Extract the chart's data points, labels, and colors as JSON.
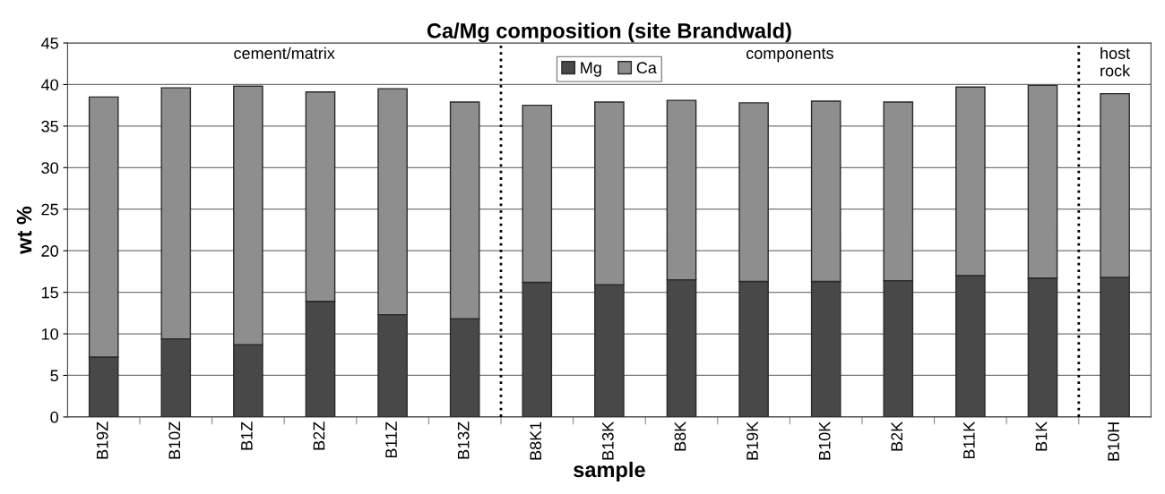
{
  "chart_data": {
    "type": "bar",
    "title": "Ca/Mg composition (site Brandwald)",
    "xlabel": "sample",
    "ylabel": "wt %",
    "categories": [
      "B19Z",
      "B10Z",
      "B1Z",
      "B2Z",
      "B11Z",
      "B13Z",
      "B8K1",
      "B13K",
      "B8K",
      "B19K",
      "B10K",
      "B2K",
      "B11K",
      "B1K",
      "B10H"
    ],
    "stacked": true,
    "series": [
      {
        "name": "Mg",
        "color": "#484848",
        "values": [
          7.2,
          9.4,
          8.7,
          13.9,
          12.3,
          11.8,
          16.2,
          15.9,
          16.5,
          16.3,
          16.3,
          16.4,
          17.0,
          16.7,
          16.8
        ]
      },
      {
        "name": "Ca",
        "color": "#8e8e8e",
        "values": [
          31.3,
          30.2,
          31.1,
          25.2,
          27.2,
          26.1,
          21.3,
          22.0,
          21.6,
          21.5,
          21.7,
          21.5,
          22.7,
          23.2,
          22.1
        ]
      }
    ],
    "ylim": [
      0,
      45
    ],
    "yticks": [
      0,
      5,
      10,
      15,
      20,
      25,
      30,
      35,
      40,
      45
    ],
    "grid": "y",
    "legend": "top",
    "annotations": [
      "cement/matrix",
      "components",
      "host rock"
    ]
  }
}
